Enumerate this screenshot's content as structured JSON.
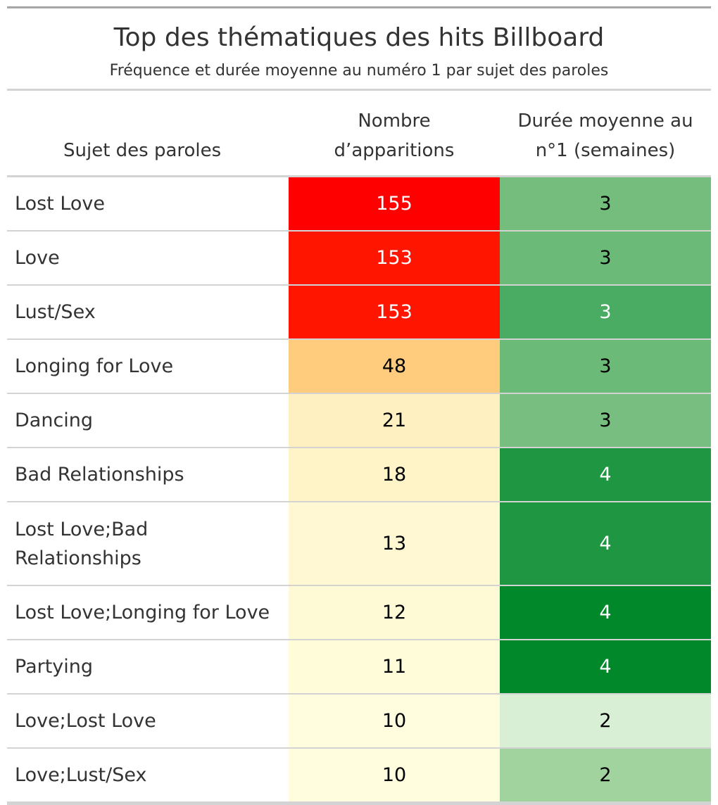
{
  "chart_data": {
    "type": "table",
    "title": "Top des thématiques des hits Billboard",
    "subtitle": "Fréquence et durée moyenne au numéro 1 par sujet des paroles",
    "columns": [
      "Sujet des paroles",
      "Nombre\nd’apparitions",
      "Durée moyenne au\nn°1 (semaines)"
    ],
    "rows": [
      {
        "subject": "Lost Love",
        "count": "155",
        "duration": "3",
        "count_color": "#ff0000",
        "count_text": "#ffffff",
        "duration_color": "#74bd7c",
        "duration_text": "#000000"
      },
      {
        "subject": "Love",
        "count": "153",
        "duration": "3",
        "count_color": "#ff1500",
        "count_text": "#ffffff",
        "duration_color": "#6cba78",
        "duration_text": "#000000"
      },
      {
        "subject": "Lust/Sex",
        "count": "153",
        "duration": "3",
        "count_color": "#ff1500",
        "count_text": "#ffffff",
        "duration_color": "#4aab63",
        "duration_text": "#ffffff"
      },
      {
        "subject": "Longing for Love",
        "count": "48",
        "duration": "3",
        "count_color": "#ffcc7d",
        "count_text": "#000000",
        "duration_color": "#6cba78",
        "duration_text": "#000000"
      },
      {
        "subject": "Dancing",
        "count": "21",
        "duration": "3",
        "count_color": "#fff0c2",
        "count_text": "#000000",
        "duration_color": "#78be80",
        "duration_text": "#000000"
      },
      {
        "subject": "Bad Relationships",
        "count": "18",
        "duration": "4",
        "count_color": "#fff4c8",
        "count_text": "#000000",
        "duration_color": "#1f9642",
        "duration_text": "#ffffff"
      },
      {
        "subject": "Lost Love;Bad Relationships",
        "count": "13",
        "duration": "4",
        "count_color": "#fff8d2",
        "count_text": "#000000",
        "duration_color": "#1f9642",
        "duration_text": "#ffffff",
        "tall": true
      },
      {
        "subject": "Lost Love;Longing for Love",
        "count": "12",
        "duration": "4",
        "count_color": "#fffad6",
        "count_text": "#000000",
        "duration_color": "#00882a",
        "duration_text": "#ffffff"
      },
      {
        "subject": "Partying",
        "count": "11",
        "duration": "4",
        "count_color": "#fffcda",
        "count_text": "#000000",
        "duration_color": "#00882a",
        "duration_text": "#ffffff"
      },
      {
        "subject": "Love;Lost Love",
        "count": "10",
        "duration": "2",
        "count_color": "#fffddd",
        "count_text": "#000000",
        "duration_color": "#d9efd5",
        "duration_text": "#000000"
      },
      {
        "subject": "Love;Lust/Sex",
        "count": "10",
        "duration": "2",
        "count_color": "#fffddd",
        "count_text": "#000000",
        "duration_color": "#a1d39f",
        "duration_text": "#000000"
      }
    ]
  }
}
